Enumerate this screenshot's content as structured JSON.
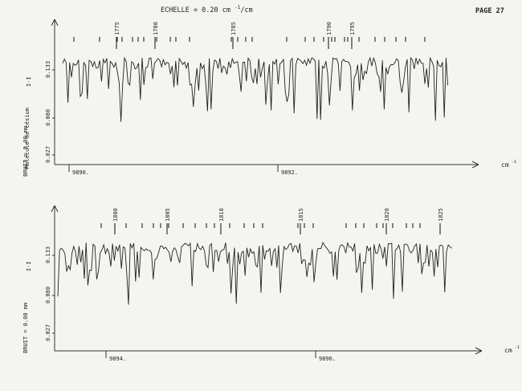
{
  "header": {
    "scale_label": "ECHELLE = 0.20 cm",
    "scale_sup": "-1",
    "scale_unit": "/cm",
    "page_label": "PAGE 27"
  },
  "side": {
    "molecule_label": "Molécule de césium",
    "noise_label": "BRUIT = 0.08 mm"
  },
  "chart_data": [
    {
      "type": "line",
      "x_unit": "cm",
      "x_unit_sup": "-1",
      "ylabel": "I-I",
      "y_ticks": [
        "0.133",
        "0.080",
        "0.027"
      ],
      "x_ticks": [
        "9890.",
        "9892."
      ],
      "line_labels": [
        "1775",
        "1780",
        "1785",
        "1790",
        "1795"
      ]
    },
    {
      "type": "line",
      "x_unit": "cm",
      "x_unit_sup": "-1",
      "ylabel": "I-I",
      "y_ticks": [
        "0.133",
        "0.080",
        "0.027"
      ],
      "x_ticks": [
        "9894.",
        "9896."
      ],
      "line_labels": [
        "1800",
        "1805",
        "1810",
        "1815",
        "1820",
        "1825"
      ]
    }
  ]
}
